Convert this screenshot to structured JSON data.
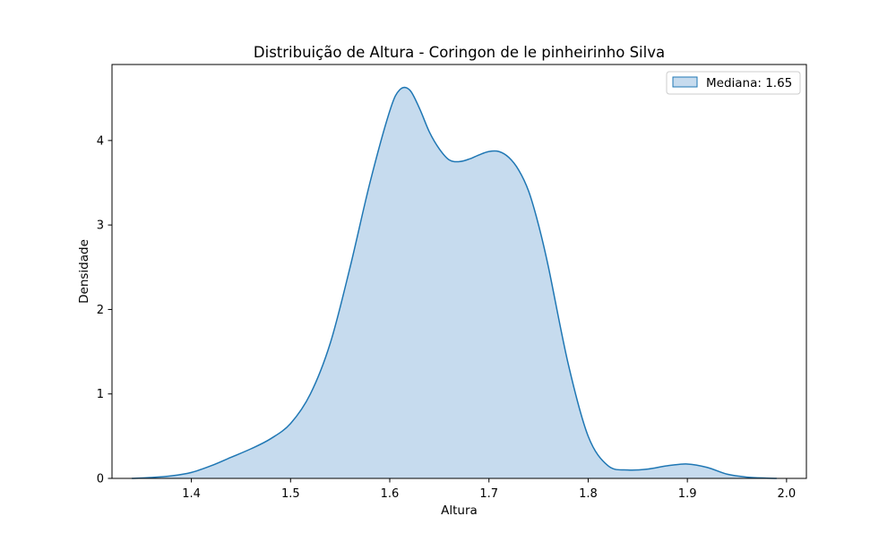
{
  "chart_data": {
    "type": "area",
    "title": "Distribuição de Altura - Coringon de le pinheirinho Silva",
    "xlabel": "Altura",
    "ylabel": "Densidade",
    "xlim": [
      1.32,
      2.02
    ],
    "ylim": [
      0,
      4.9
    ],
    "xticks": [
      1.4,
      1.5,
      1.6,
      1.7,
      1.8,
      1.9,
      2.0
    ],
    "xtick_labels": [
      "1.4",
      "1.5",
      "1.6",
      "1.7",
      "1.8",
      "1.9",
      "2.0"
    ],
    "yticks": [
      0,
      1,
      2,
      3,
      4
    ],
    "ytick_labels": [
      "0",
      "1",
      "2",
      "3",
      "4"
    ],
    "grid": false,
    "legend_position": "top-right",
    "series": [
      {
        "name": "Mediana: 1.65",
        "line_color": "#1f77b4",
        "fill_color": "#c6dbee",
        "x": [
          1.34,
          1.36,
          1.38,
          1.4,
          1.42,
          1.44,
          1.46,
          1.48,
          1.5,
          1.52,
          1.54,
          1.56,
          1.58,
          1.6,
          1.61,
          1.62,
          1.63,
          1.64,
          1.65,
          1.66,
          1.67,
          1.68,
          1.69,
          1.7,
          1.71,
          1.72,
          1.73,
          1.74,
          1.75,
          1.76,
          1.78,
          1.8,
          1.82,
          1.84,
          1.86,
          1.88,
          1.9,
          1.92,
          1.94,
          1.96,
          1.98,
          1.99
        ],
        "y": [
          0.0,
          0.01,
          0.03,
          0.07,
          0.15,
          0.25,
          0.35,
          0.47,
          0.65,
          1.0,
          1.6,
          2.5,
          3.5,
          4.35,
          4.6,
          4.6,
          4.38,
          4.1,
          3.9,
          3.77,
          3.75,
          3.78,
          3.83,
          3.87,
          3.87,
          3.8,
          3.65,
          3.4,
          3.0,
          2.5,
          1.35,
          0.5,
          0.15,
          0.1,
          0.11,
          0.15,
          0.17,
          0.13,
          0.05,
          0.015,
          0.003,
          0.0
        ]
      }
    ]
  }
}
